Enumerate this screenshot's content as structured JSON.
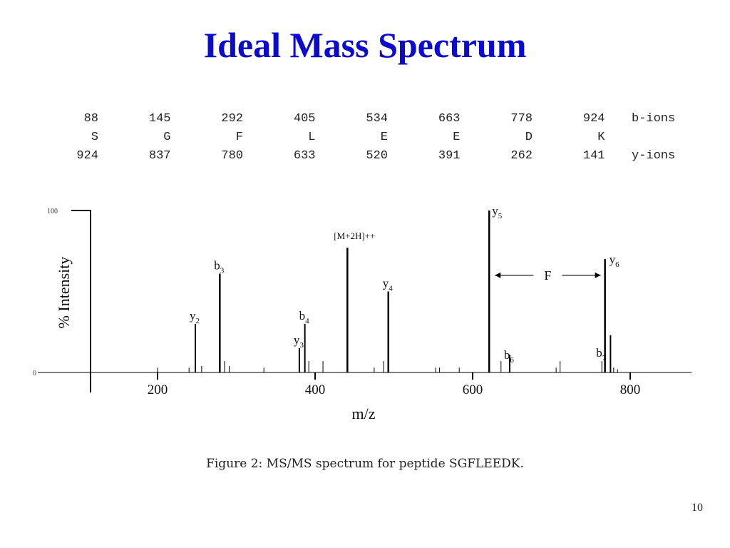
{
  "slide": {
    "title": "Ideal Mass Spectrum",
    "caption": "Figure 2: MS/MS spectrum for peptide SGFLEEDK.",
    "page_number": "10"
  },
  "ion_table": {
    "b_ions": [
      "88",
      "145",
      "292",
      "405",
      "534",
      "663",
      "778",
      "924"
    ],
    "b_label": "b-ions",
    "residues": [
      "S",
      "G",
      "F",
      "L",
      "E",
      "E",
      "D",
      "K"
    ],
    "y_ions": [
      "924",
      "837",
      "780",
      "633",
      "520",
      "391",
      "262",
      "141"
    ],
    "y_label": "y-ions"
  },
  "chart_data": {
    "type": "bar",
    "ylabel": "% Intensity",
    "xlabel": "m/z",
    "xlim": [
      0,
      1000
    ],
    "ylim": [
      0,
      100
    ],
    "y_ticks": [
      "100",
      "0"
    ],
    "x_ticks": [
      200,
      400,
      600,
      800
    ],
    "axis_color": "#000000",
    "peaks": [
      {
        "mz": 200,
        "intensity": 3
      },
      {
        "mz": 240,
        "intensity": 3
      },
      {
        "mz": 248,
        "intensity": 30,
        "label": "y",
        "sub": "2"
      },
      {
        "mz": 256,
        "intensity": 4
      },
      {
        "mz": 279,
        "intensity": 61,
        "label": "b",
        "sub": "3"
      },
      {
        "mz": 285,
        "intensity": 7
      },
      {
        "mz": 291,
        "intensity": 4
      },
      {
        "mz": 335,
        "intensity": 3
      },
      {
        "mz": 380,
        "intensity": 15,
        "label": "y",
        "sub": "3"
      },
      {
        "mz": 387,
        "intensity": 30,
        "label": "b",
        "sub": "4"
      },
      {
        "mz": 392,
        "intensity": 7
      },
      {
        "mz": 410,
        "intensity": 7
      },
      {
        "mz": 441,
        "intensity": 77,
        "label": "[M+2H]++"
      },
      {
        "mz": 475,
        "intensity": 3
      },
      {
        "mz": 487,
        "intensity": 7
      },
      {
        "mz": 493,
        "intensity": 50,
        "label": "y",
        "sub": "4"
      },
      {
        "mz": 553,
        "intensity": 3
      },
      {
        "mz": 558,
        "intensity": 3
      },
      {
        "mz": 583,
        "intensity": 3
      },
      {
        "mz": 621,
        "intensity": 100,
        "label": "y",
        "sub": "5"
      },
      {
        "mz": 636,
        "intensity": 7
      },
      {
        "mz": 647,
        "intensity": 11,
        "label": "b",
        "sub": "6"
      },
      {
        "mz": 706,
        "intensity": 3
      },
      {
        "mz": 711,
        "intensity": 7
      },
      {
        "mz": 764,
        "intensity": 7,
        "label": "b",
        "sub": "7"
      },
      {
        "mz": 768,
        "intensity": 70,
        "label": "y",
        "sub": "6"
      },
      {
        "mz": 775,
        "intensity": 23
      },
      {
        "mz": 779,
        "intensity": 3
      },
      {
        "mz": 784,
        "intensity": 2
      }
    ],
    "annotation": {
      "text": "F",
      "from_mz": 621,
      "to_mz": 768,
      "intensity": 60
    }
  }
}
